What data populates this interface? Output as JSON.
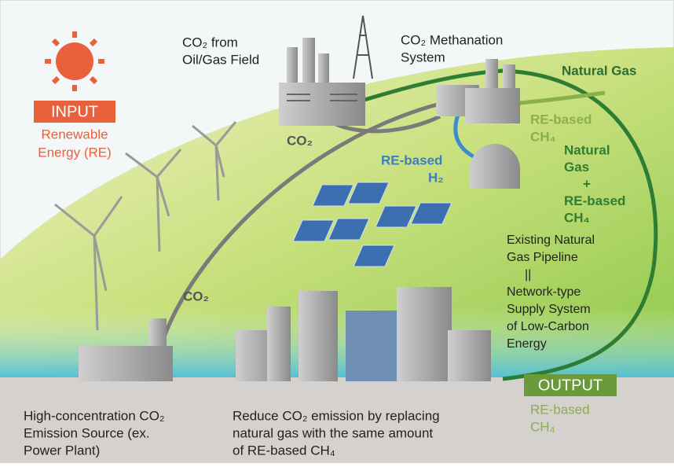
{
  "source_field": [
    "CO₂ from",
    "Oil/Gas Field"
  ],
  "methanation": [
    "CO₂ Methanation",
    "System"
  ],
  "natural_gas": "Natural Gas",
  "input": {
    "badge": "INPUT",
    "lines": [
      "Renewable",
      "Energy (RE)"
    ]
  },
  "co2_factory": "CO₂",
  "h2": [
    "RE-based",
    "H₂"
  ],
  "ch4_flow": [
    "RE-based",
    "CH₄"
  ],
  "mix": [
    "Natural",
    "Gas",
    "+",
    "RE-based",
    "CH₄"
  ],
  "pipeline": [
    "Existing Natural",
    "Gas Pipeline",
    "||",
    "Network-type",
    "Supply System",
    "of Low-Carbon",
    "Energy"
  ],
  "co2_pipe": "CO₂",
  "output": {
    "badge": "OUTPUT",
    "lines": [
      "RE-based",
      "CH₄"
    ]
  },
  "emission_source": [
    "High-concentration CO₂",
    "Emission Source (ex.",
    "Power Plant)"
  ],
  "reduce": [
    "Reduce CO₂ emission by replacing",
    "natural gas with the same amount",
    "of RE-based CH₄"
  ]
}
